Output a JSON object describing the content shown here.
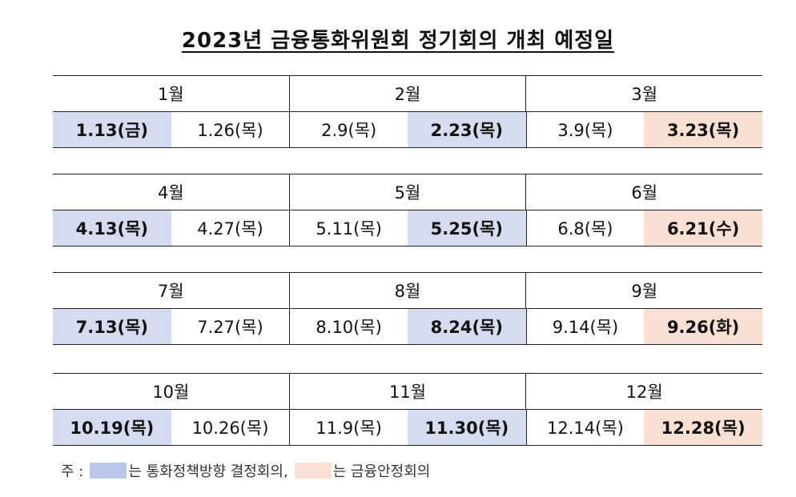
{
  "title": "2023년 금융통화위원회 정기회의 개최 예정일",
  "quarters": [
    {
      "months": [
        "1월",
        "2월",
        "3월"
      ],
      "dates": [
        {
          "text": "1.13(금)",
          "type": "mpc"
        },
        {
          "text": "1.26(목)",
          "type": "normal"
        },
        {
          "text": "2.9(목)",
          "type": "normal"
        },
        {
          "text": "2.23(목)",
          "type": "mpc"
        },
        {
          "text": "3.9(목)",
          "type": "normal"
        },
        {
          "text": "3.23(목)",
          "type": "fs"
        }
      ]
    },
    {
      "months": [
        "4월",
        "5월",
        "6월"
      ],
      "dates": [
        {
          "text": "4.13(목)",
          "type": "mpc"
        },
        {
          "text": "4.27(목)",
          "type": "normal"
        },
        {
          "text": "5.11(목)",
          "type": "normal"
        },
        {
          "text": "5.25(목)",
          "type": "mpc"
        },
        {
          "text": "6.8(목)",
          "type": "normal"
        },
        {
          "text": "6.21(수)",
          "type": "fs"
        }
      ]
    },
    {
      "months": [
        "7월",
        "8월",
        "9월"
      ],
      "dates": [
        {
          "text": "7.13(목)",
          "type": "mpc"
        },
        {
          "text": "7.27(목)",
          "type": "normal"
        },
        {
          "text": "8.10(목)",
          "type": "normal"
        },
        {
          "text": "8.24(목)",
          "type": "mpc"
        },
        {
          "text": "9.14(목)",
          "type": "normal"
        },
        {
          "text": "9.26(화)",
          "type": "fs"
        }
      ]
    },
    {
      "months": [
        "10월",
        "11월",
        "12월"
      ],
      "dates": [
        {
          "text": "10.19(목)",
          "type": "mpc"
        },
        {
          "text": "10.26(목)",
          "type": "normal"
        },
        {
          "text": "11.9(목)",
          "type": "normal"
        },
        {
          "text": "11.30(목)",
          "type": "mpc"
        },
        {
          "text": "12.14(목)",
          "type": "normal"
        },
        {
          "text": "12.28(목)",
          "type": "fs"
        }
      ]
    }
  ],
  "note": {
    "prefix": "주 :",
    "mpc_label": "는 통화정책방향 결정회의,",
    "fs_label": "는 금융안정회의"
  },
  "colors": {
    "mpc": "#d5dcef",
    "fs": "#f9e0d3",
    "mpc_legend": "#b8c6ea"
  }
}
